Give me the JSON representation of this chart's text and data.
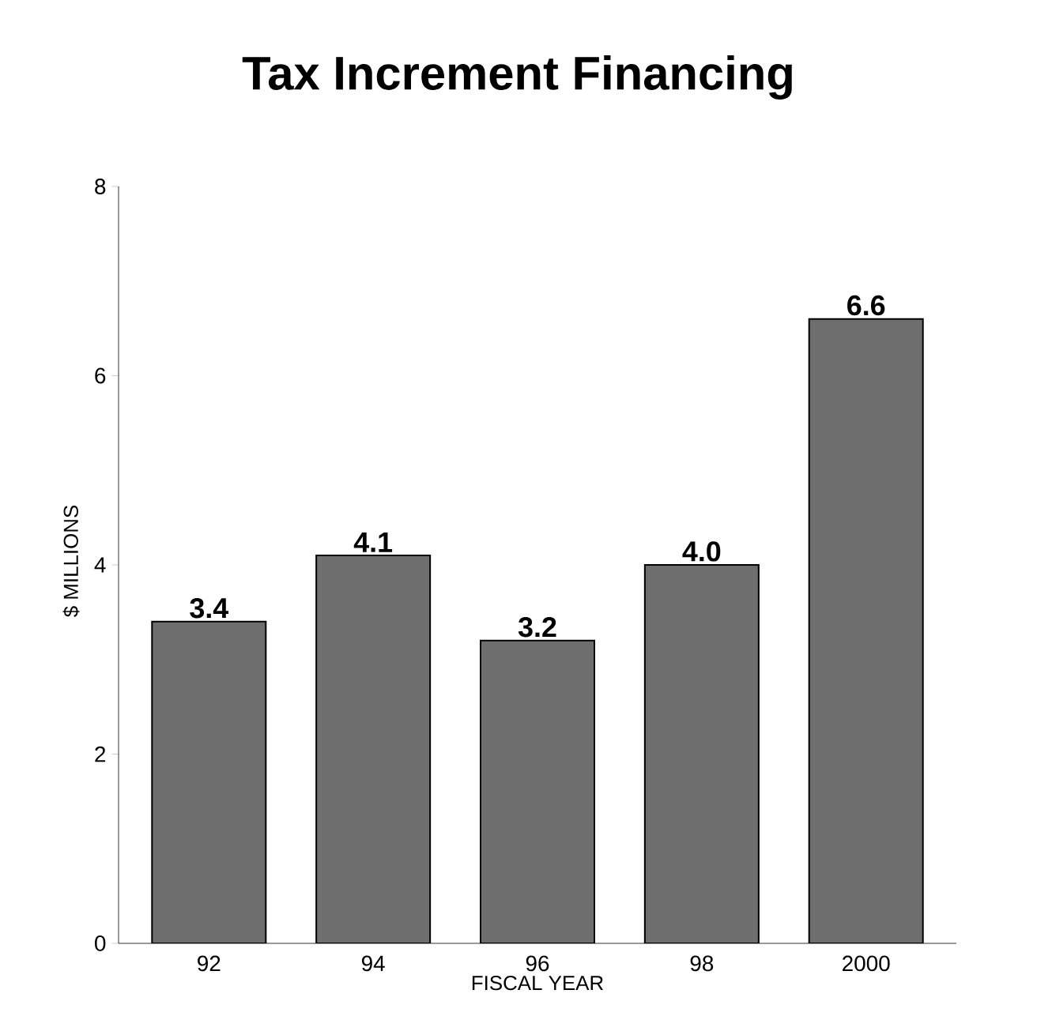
{
  "chart_data": {
    "type": "bar",
    "title": "Tax Increment Financing",
    "xlabel": "FISCAL YEAR",
    "ylabel": "$ MILLIONS",
    "categories": [
      "92",
      "94",
      "96",
      "98",
      "2000"
    ],
    "values": [
      3.4,
      4.1,
      3.2,
      4.0,
      6.6
    ],
    "color": "#6e6e6e",
    "value_labels": [
      "3.4",
      "4.1",
      "3.2",
      "4.0",
      "6.6"
    ],
    "ylim": [
      0,
      8
    ],
    "yticks": [
      0,
      2,
      4,
      6,
      8
    ]
  }
}
